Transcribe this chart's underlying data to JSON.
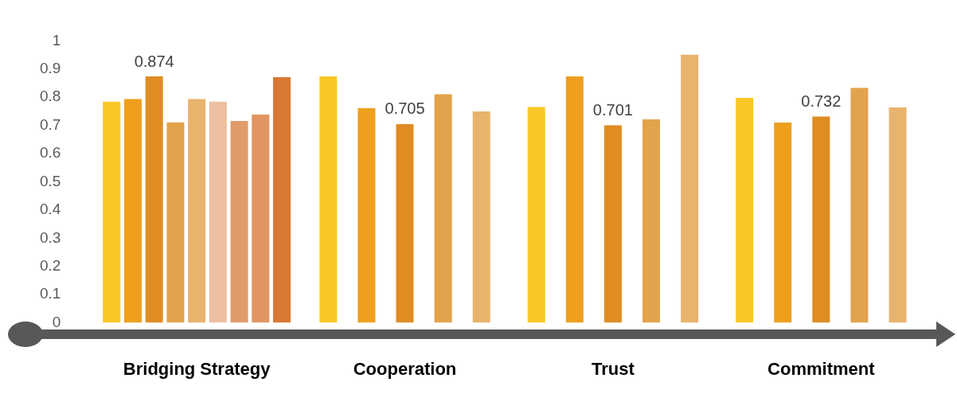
{
  "chart_data": {
    "type": "bar",
    "categories": [
      "Bridging Strategy",
      "Cooperation",
      "Trust",
      "Commitment"
    ],
    "series": [
      {
        "color": "#f9c726",
        "values": [
          0.785,
          0.874,
          0.766,
          0.798
        ]
      },
      {
        "color": "#ee9f1e",
        "values": [
          0.794,
          0.762,
          0.874,
          0.71
        ]
      },
      {
        "color": "#df8c22",
        "values": [
          0.874,
          0.705,
          0.701,
          0.732
        ],
        "value_labels": [
          "0.874",
          "0.705",
          "0.701",
          "0.732"
        ]
      },
      {
        "color": "#e3a34c",
        "values": [
          0.712,
          0.811,
          0.722,
          0.834
        ]
      },
      {
        "color": "#e8b36d",
        "values": [
          0.794,
          0.75,
          0.952,
          0.764
        ]
      },
      {
        "color": "#ecbf9f",
        "values": [
          0.785,
          null,
          null,
          null
        ]
      },
      {
        "color": "#e09b69",
        "values": [
          0.716,
          null,
          null,
          null
        ]
      },
      {
        "color": "#e19662",
        "values": [
          0.739,
          null,
          null,
          null
        ]
      },
      {
        "color": "#d97834",
        "values": [
          0.871,
          null,
          null,
          null
        ]
      }
    ],
    "ylim": [
      0,
      1
    ],
    "yticks": [
      0,
      0.1,
      0.2,
      0.3,
      0.4,
      0.5,
      0.6,
      0.7,
      0.8,
      0.9,
      1
    ],
    "grid": false,
    "legend": false
  }
}
